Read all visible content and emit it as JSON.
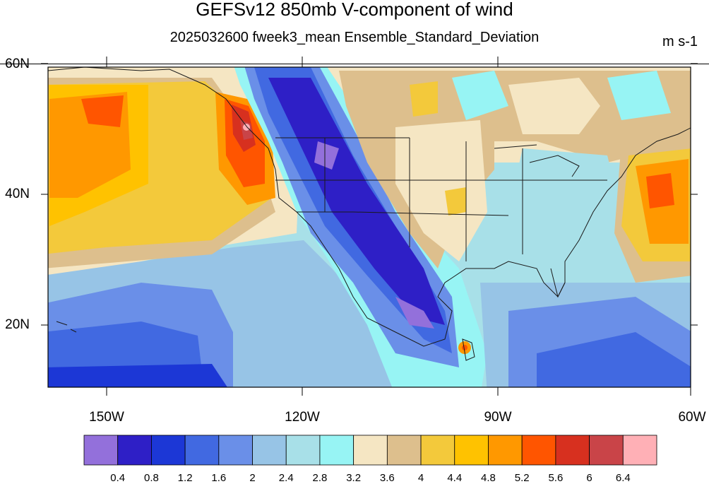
{
  "title": "GEFSv12 850mb V-component of wind",
  "subtitle": "2025032600 fweek3_mean Ensemble_Standard_Deviation",
  "units": "m s-1",
  "lat_labels": [
    "60N",
    "40N",
    "20N"
  ],
  "lon_labels": [
    "150W",
    "120W",
    "90W",
    "60W"
  ],
  "map_extent": {
    "lon_min": -159,
    "lon_max": -60,
    "lat_min": 10,
    "lat_max": 60
  },
  "colorbar": {
    "colors": [
      "#9370DB",
      "#2E1FC6",
      "#1C37D6",
      "#4169E1",
      "#6A8FE8",
      "#97C4E6",
      "#A8E0E8",
      "#97F4F4",
      "#F5E6C3",
      "#DDBF8D",
      "#F3C93B",
      "#FFC200",
      "#FF9800",
      "#FF5500",
      "#D7301F",
      "#C94448",
      "#FFB0B6"
    ],
    "levels": [
      "0.4",
      "0.8",
      "1.2",
      "1.6",
      "2",
      "2.4",
      "2.8",
      "3.2",
      "3.6",
      "4",
      "4.4",
      "4.8",
      "5.2",
      "5.6",
      "6",
      "6.4"
    ]
  }
}
